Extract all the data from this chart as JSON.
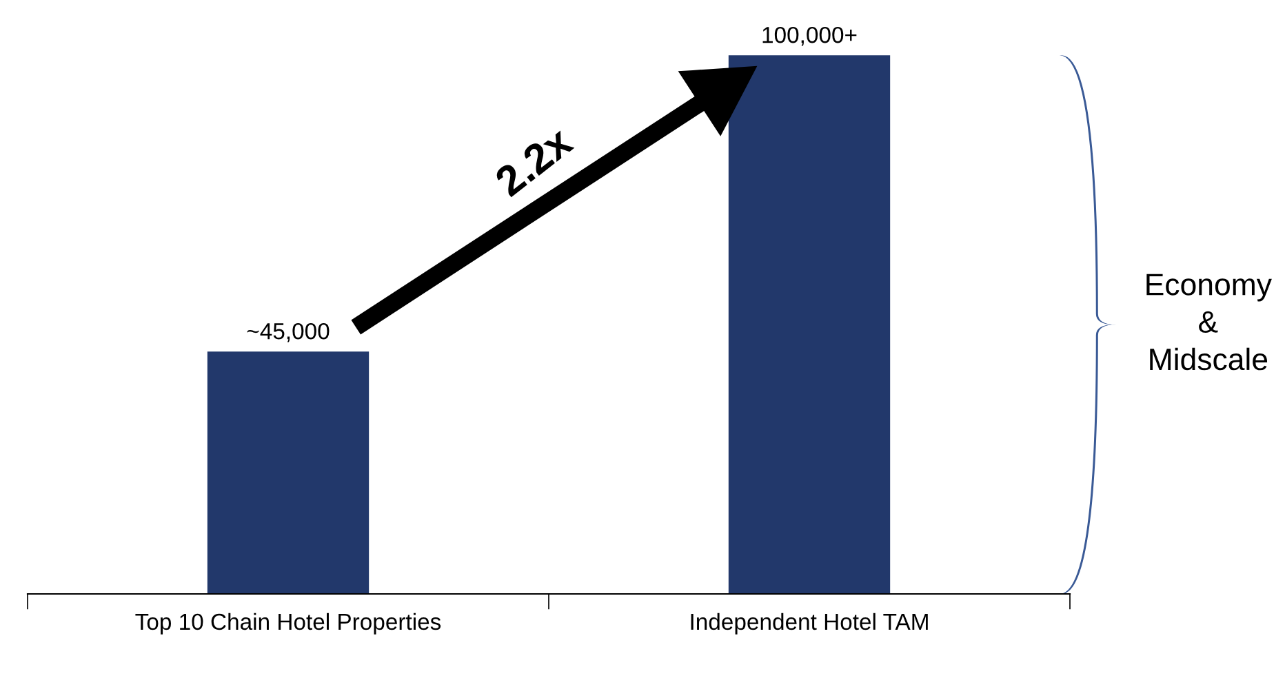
{
  "chart_data": {
    "type": "bar",
    "categories": [
      "Top 10 Chain Hotel Properties",
      "Independent Hotel TAM"
    ],
    "values": [
      45000,
      100000
    ],
    "value_labels": [
      "~45,000",
      "100,000+"
    ],
    "color": "#22386b",
    "tick_labels": "x",
    "grid": false,
    "legend": false,
    "annotations": [
      "2.2x",
      "Economy\n&\nMidscale"
    ]
  }
}
